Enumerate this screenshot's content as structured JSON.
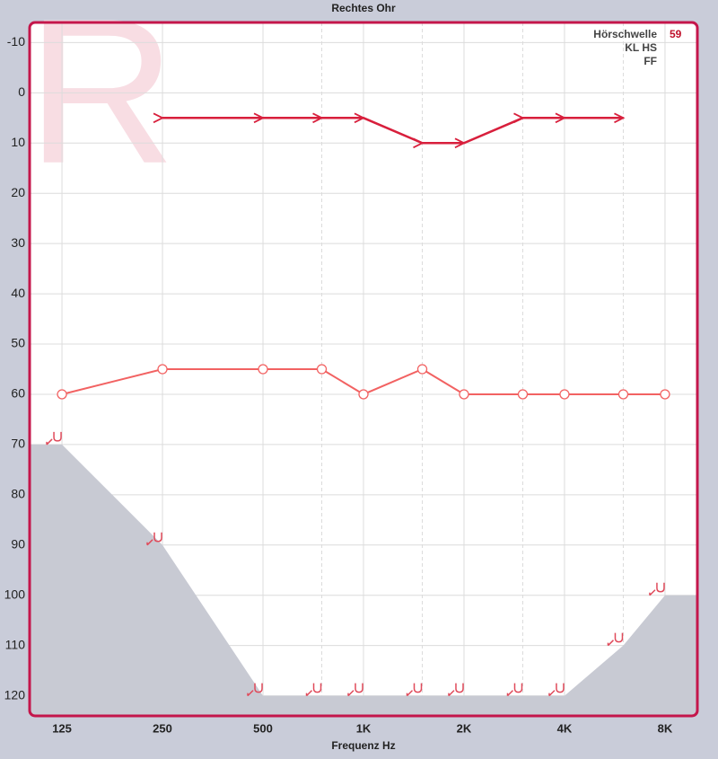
{
  "chart_data": {
    "type": "audiogram",
    "title": "Rechtes Ohr",
    "watermark": "R",
    "x_label": "Frequenz Hz",
    "log_x": true,
    "xlim": [
      100,
      10000
    ],
    "xticks": [
      125,
      250,
      500,
      {
        "value": 1000,
        "label": "1K"
      },
      {
        "value": 2000,
        "label": "2K"
      },
      {
        "value": 4000,
        "label": "4K"
      },
      {
        "value": 8000,
        "label": "8K"
      }
    ],
    "minor_xticks": [
      750,
      1500,
      3000,
      6000
    ],
    "ylim": [
      -14,
      124
    ],
    "y_inverted": true,
    "yticks": [
      -10,
      0,
      10,
      20,
      30,
      40,
      50,
      60,
      70,
      80,
      90,
      100,
      110,
      120
    ],
    "grid": true,
    "legend": [
      {
        "label": "Hörschwelle",
        "value": 59
      },
      {
        "label": "KL HS"
      },
      {
        "label": "FF"
      }
    ],
    "series": [
      {
        "marker": "limit",
        "color": "#e04a5a",
        "fill": "#c8cad3",
        "x": [
          125,
          250,
          500,
          750,
          1000,
          1500,
          2000,
          3000,
          4000,
          6000,
          8000
        ],
        "values": [
          70,
          90,
          120,
          120,
          120,
          120,
          120,
          120,
          120,
          110,
          100
        ]
      },
      {
        "marker": "circle",
        "color": "#f26262",
        "x": [
          125,
          250,
          500,
          750,
          1000,
          1500,
          2000,
          3000,
          4000,
          6000,
          8000
        ],
        "values": [
          60,
          55,
          55,
          55,
          60,
          55,
          60,
          60,
          60,
          60,
          60
        ]
      },
      {
        "marker": "arrow",
        "color": "#d81f3c",
        "x": [
          250,
          500,
          750,
          1000,
          1500,
          2000,
          3000,
          4000,
          6000
        ],
        "values": [
          5,
          5,
          5,
          5,
          10,
          10,
          5,
          5,
          5
        ]
      }
    ]
  }
}
